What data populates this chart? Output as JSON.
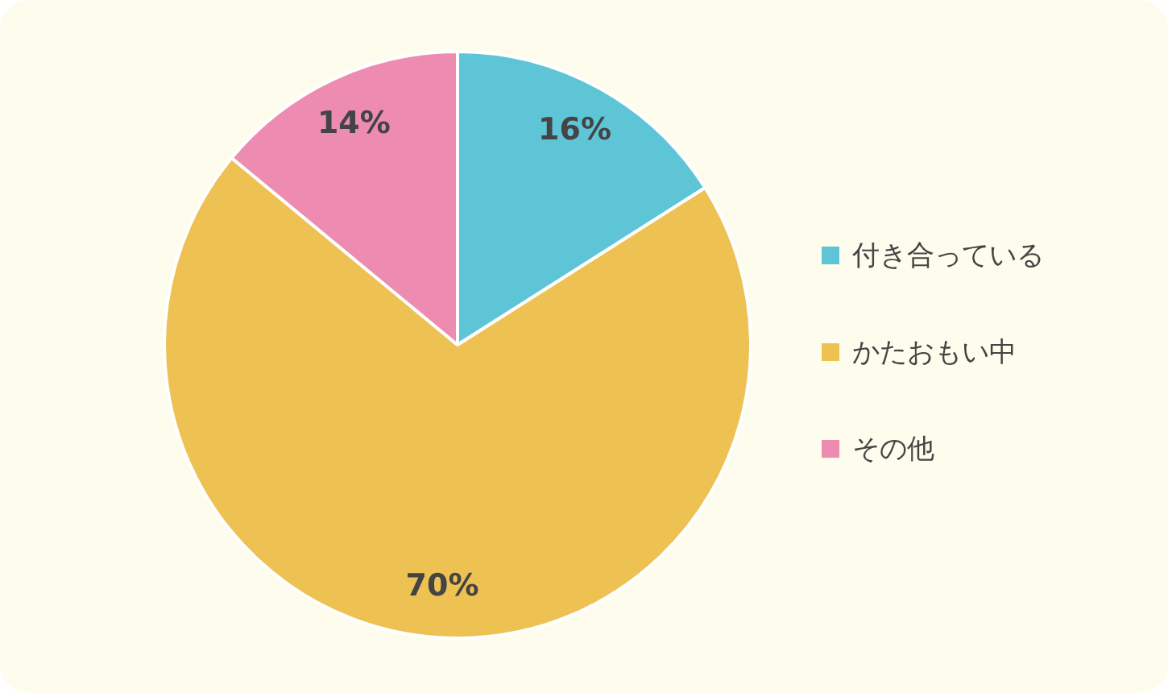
{
  "chart_data": {
    "type": "pie",
    "categories": [
      "付き合っている",
      "かたおもい中",
      "その他"
    ],
    "values": [
      16,
      70,
      14
    ],
    "colors": [
      "#5ec5d7",
      "#eec153",
      "#ee8bb1"
    ],
    "value_labels": [
      "16%",
      "70%",
      "14%"
    ],
    "legend": "right"
  }
}
